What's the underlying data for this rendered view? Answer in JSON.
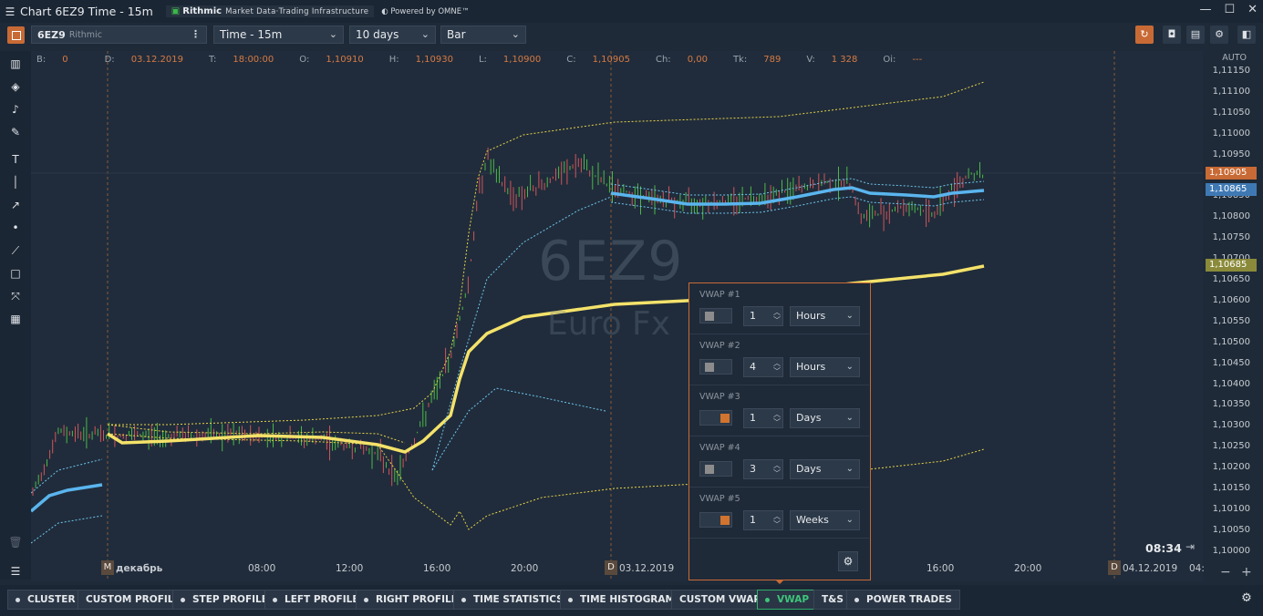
{
  "window": {
    "title": "Chart 6EZ9 Time - 15m",
    "menu_icon": "hamburger-icon",
    "brand_name": "Rithmic",
    "brand_tag": "Market Data·Trading Infrastructure",
    "brand_powered": "Powered by OMNE™",
    "controls": [
      "minimize",
      "maximize",
      "close"
    ]
  },
  "toolbar": {
    "symbol": "6EZ9",
    "symbol_source": "Rithmic",
    "timeframe": "Time - 15m",
    "period": "10 days",
    "chart_style": "Bar"
  },
  "info": {
    "b_label": "B:",
    "b_value": "0",
    "d_label": "D:",
    "d_value": "03.12.2019",
    "t_label": "T:",
    "t_value": "18:00:00",
    "o_label": "O:",
    "o_value": "1,10910",
    "h_label": "H:",
    "h_value": "1,10930",
    "l_label": "L:",
    "l_value": "1,10900",
    "c_label": "C:",
    "c_value": "1,10905",
    "ch_label": "Ch:",
    "ch_value": "0,00",
    "tk_label": "Tk:",
    "tk_value": "789",
    "v_label": "V:",
    "v_value": "1 328",
    "oi_label": "Oi:",
    "oi_value": "---"
  },
  "watermark": {
    "symbol": "6EZ9",
    "name": "Euro Fx"
  },
  "yaxis": {
    "auto_label": "AUTO",
    "ticks": [
      "1,11150",
      "1,11100",
      "1,11050",
      "1,11000",
      "1,10950",
      "1,10900",
      "1,10850",
      "1,10800",
      "1,10750",
      "1,10700",
      "1,10650",
      "1,10600",
      "1,10550",
      "1,10500",
      "1,10450",
      "1,10400",
      "1,10350",
      "1,10300",
      "1,10250",
      "1,10200",
      "1,10150",
      "1,10100",
      "1,10050",
      "1,10000"
    ],
    "badges": [
      {
        "text": "1,10905",
        "color": "#c86a35"
      },
      {
        "text": "1,10865",
        "color": "#3f79b4"
      },
      {
        "text": "1,10685",
        "color": "#8a8a3a"
      }
    ]
  },
  "xaxis": {
    "labels": [
      {
        "badge": "M",
        "text": "декабрь"
      },
      {
        "badge": "",
        "text": "08:00"
      },
      {
        "badge": "",
        "text": "12:00"
      },
      {
        "badge": "",
        "text": "16:00"
      },
      {
        "badge": "",
        "text": "20:00"
      },
      {
        "badge": "D",
        "text": "03.12.2019"
      },
      {
        "badge": "",
        "text": "16:00"
      },
      {
        "badge": "",
        "text": "20:00"
      },
      {
        "badge": "D",
        "text": "04.12.2019"
      },
      {
        "badge": "",
        "text": "04:"
      }
    ]
  },
  "clock": "08:34",
  "vwap_panel": {
    "rows": [
      {
        "label": "VWAP #1",
        "color": "#8c8c8c",
        "value": "1",
        "unit": "Hours"
      },
      {
        "label": "VWAP #2",
        "color": "#8c8c8c",
        "value": "4",
        "unit": "Hours"
      },
      {
        "label": "VWAP #3",
        "color": "#d1742f",
        "value": "1",
        "unit": "Days"
      },
      {
        "label": "VWAP #4",
        "color": "#8c8c8c",
        "value": "3",
        "unit": "Days"
      },
      {
        "label": "VWAP #5",
        "color": "#d1742f",
        "value": "1",
        "unit": "Weeks"
      }
    ]
  },
  "bottom_tabs": [
    {
      "label": "CLUSTER",
      "dot": true,
      "active": false
    },
    {
      "label": "CUSTOM PROFILE",
      "dot": false,
      "active": false
    },
    {
      "label": "STEP PROFILE",
      "dot": true,
      "active": false
    },
    {
      "label": "LEFT PROFILE",
      "dot": true,
      "active": false
    },
    {
      "label": "RIGHT PROFILE",
      "dot": true,
      "active": false
    },
    {
      "label": "TIME STATISTICS",
      "dot": true,
      "active": false
    },
    {
      "label": "TIME HISTOGRAM",
      "dot": true,
      "active": false
    },
    {
      "label": "CUSTOM VWAP",
      "dot": false,
      "active": false
    },
    {
      "label": "VWAP",
      "dot": true,
      "active": true
    },
    {
      "label": "T&S",
      "dot": false,
      "active": false
    },
    {
      "label": "POWER TRADES",
      "dot": true,
      "active": false
    }
  ],
  "zoom": {
    "minus": "−",
    "plus": "+"
  },
  "chart_data": {
    "type": "ohlc",
    "symbol": "6EZ9",
    "timeframe": "15m",
    "ylim": [
      1.1,
      1.1115
    ],
    "series": [
      {
        "color": "#f2e15a",
        "y_start": 1.10285,
        "y_flat": 1.10275,
        "y_rise": 1.10555,
        "y_end": 1.10685
      },
      {
        "color": "#5ab5ee",
        "y_start": 1.1011,
        "y_mid": 1.1016,
        "y_end": 1.10865
      }
    ]
  }
}
